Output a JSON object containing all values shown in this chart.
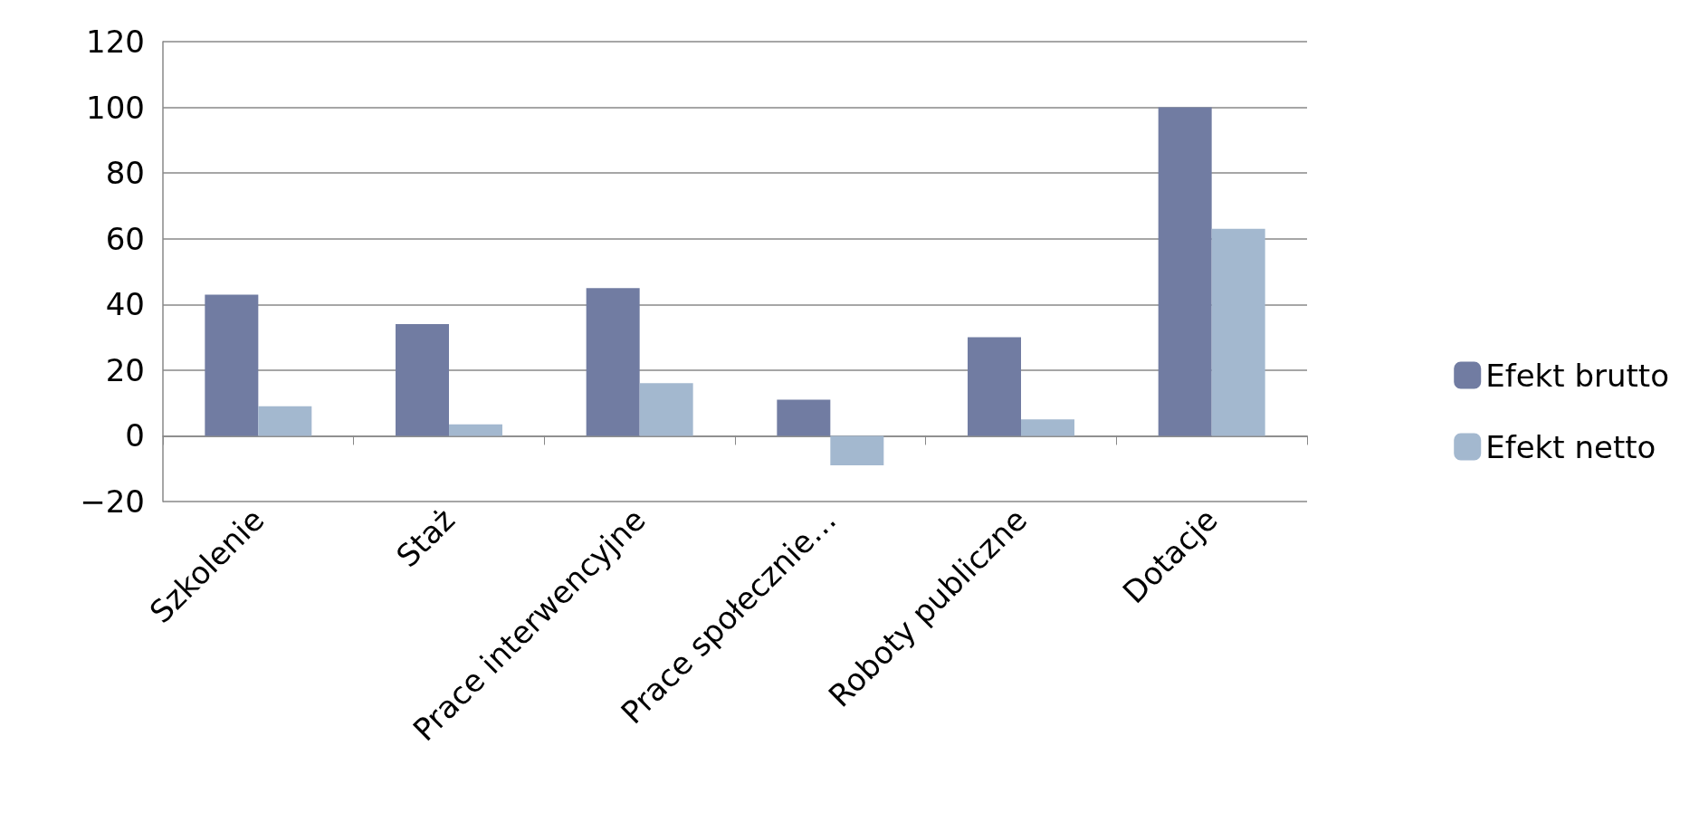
{
  "chart_data": {
    "type": "bar",
    "categories": [
      "Szkolenie",
      "Staż",
      "Prace interwencyjne",
      "Prace społecznie…",
      "Roboty publiczne",
      "Dotacje"
    ],
    "series": [
      {
        "name": "Efekt brutto",
        "color": "#717ca2",
        "values": [
          43,
          34,
          45,
          11,
          30,
          100
        ]
      },
      {
        "name": "Efekt netto",
        "color": "#a3b8cf",
        "values": [
          9,
          3.5,
          16,
          -9,
          5,
          63
        ]
      }
    ],
    "ylim": [
      -20,
      120
    ],
    "yticks": [
      -20,
      0,
      20,
      40,
      60,
      80,
      100,
      120
    ],
    "grid": "y",
    "legend": "right"
  }
}
